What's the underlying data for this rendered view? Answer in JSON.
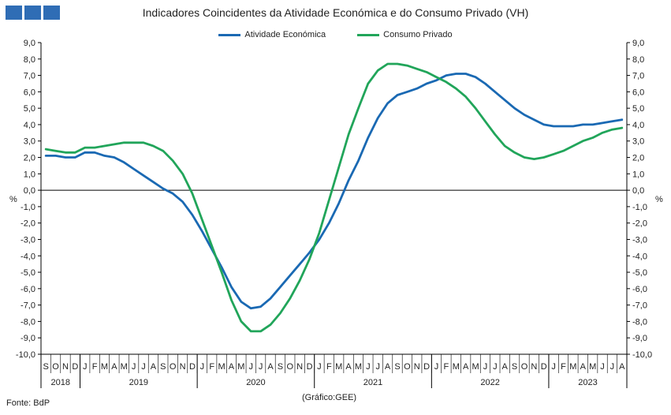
{
  "header": {
    "title": "Indicadores Coincidentes da Atividade Económica e do Consumo Privado (VH)",
    "source": "Fonte: BdP",
    "note": "(Gráfico:GEE)"
  },
  "colors": {
    "logo": "#2f6db5",
    "activity": "#1a69b3",
    "consumption": "#21a55a",
    "axis": "#000000"
  },
  "chart_data": {
    "type": "line",
    "title": "Indicadores Coincidentes da Atividade Económica e do Consumo Privado (VH)",
    "ylabel_left": "%",
    "ylabel_right": "%",
    "ylim": [
      -10,
      9
    ],
    "yticks": [
      "-10,0",
      "-9,0",
      "-8,0",
      "-7,0",
      "-6,0",
      "-5,0",
      "-4,0",
      "-3,0",
      "-2,0",
      "-1,0",
      "0,0",
      "1,0",
      "2,0",
      "3,0",
      "4,0",
      "5,0",
      "6,0",
      "7,0",
      "8,0",
      "9,0"
    ],
    "grid": false,
    "legend_position": "top-center",
    "x": [
      "S",
      "O",
      "N",
      "D",
      "J",
      "F",
      "M",
      "A",
      "M",
      "J",
      "J",
      "A",
      "S",
      "O",
      "N",
      "D",
      "J",
      "F",
      "M",
      "A",
      "M",
      "J",
      "J",
      "A",
      "S",
      "O",
      "N",
      "D",
      "J",
      "F",
      "M",
      "A",
      "M",
      "J",
      "J",
      "A",
      "S",
      "O",
      "N",
      "D",
      "J",
      "F",
      "M",
      "A",
      "M",
      "J",
      "J",
      "A",
      "S",
      "O",
      "N",
      "D",
      "J",
      "F",
      "M",
      "A",
      "M",
      "J",
      "J",
      "A"
    ],
    "years": [
      {
        "label": "2018",
        "start": 0,
        "count": 4
      },
      {
        "label": "2019",
        "start": 4,
        "count": 12
      },
      {
        "label": "2020",
        "start": 16,
        "count": 12
      },
      {
        "label": "2021",
        "start": 28,
        "count": 12
      },
      {
        "label": "2022",
        "start": 40,
        "count": 12
      },
      {
        "label": "2023",
        "start": 52,
        "count": 8
      }
    ],
    "series": [
      {
        "name": "Atividade Económica",
        "color": "#1a69b3",
        "values": [
          2.1,
          2.1,
          2.0,
          2.0,
          2.3,
          2.3,
          2.1,
          2.0,
          1.7,
          1.3,
          0.9,
          0.5,
          0.1,
          -0.2,
          -0.7,
          -1.5,
          -2.5,
          -3.6,
          -4.7,
          -5.9,
          -6.8,
          -7.2,
          -7.1,
          -6.6,
          -5.9,
          -5.2,
          -4.5,
          -3.8,
          -3.0,
          -2.0,
          -0.8,
          0.6,
          1.8,
          3.2,
          4.4,
          5.3,
          5.8,
          6.0,
          6.2,
          6.5,
          6.7,
          7.0,
          7.1,
          7.1,
          6.9,
          6.5,
          6.0,
          5.5,
          5.0,
          4.6,
          4.3,
          4.0,
          3.9,
          3.9,
          3.9,
          4.0,
          4.0,
          4.1,
          4.2,
          4.3
        ]
      },
      {
        "name": "Consumo Privado",
        "color": "#21a55a",
        "values": [
          2.5,
          2.4,
          2.3,
          2.3,
          2.6,
          2.6,
          2.7,
          2.8,
          2.9,
          2.9,
          2.9,
          2.7,
          2.4,
          1.8,
          1.0,
          -0.2,
          -1.8,
          -3.4,
          -5.0,
          -6.7,
          -8.0,
          -8.6,
          -8.6,
          -8.2,
          -7.5,
          -6.6,
          -5.5,
          -4.2,
          -2.6,
          -0.6,
          1.4,
          3.4,
          5.0,
          6.5,
          7.3,
          7.7,
          7.7,
          7.6,
          7.4,
          7.2,
          6.9,
          6.6,
          6.2,
          5.7,
          5.0,
          4.2,
          3.4,
          2.7,
          2.3,
          2.0,
          1.9,
          2.0,
          2.2,
          2.4,
          2.7,
          3.0,
          3.2,
          3.5,
          3.7,
          3.8
        ]
      }
    ]
  }
}
